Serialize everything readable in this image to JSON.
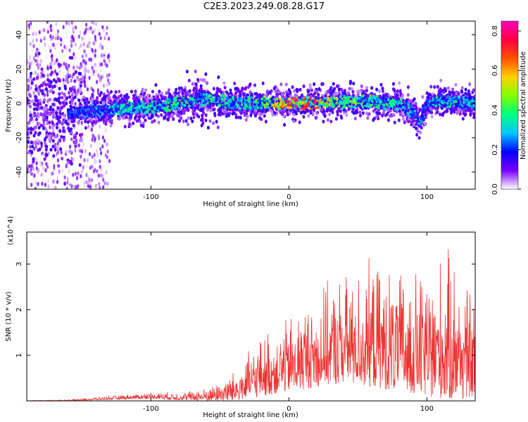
{
  "title": "C2E3.2023.249.08.28.G17",
  "chart_data": [
    {
      "type": "heatmap",
      "xlabel": "Height of straight line (km)",
      "ylabel": "Frequency (Hz)",
      "xlim": [
        -190,
        135
      ],
      "ylim": [
        -50,
        48
      ],
      "xticks": [
        -100,
        0,
        100
      ],
      "yticks": [
        -40,
        -20,
        0,
        20,
        40
      ],
      "colorbar": {
        "label": "Normalized spectral amplitude",
        "range": [
          0.0,
          0.85
        ],
        "ticks": [
          0.0,
          0.2,
          0.4,
          0.6,
          0.8
        ],
        "tick_labels": [
          "0.0",
          "0.2",
          "0.4",
          "0.6",
          "0.8"
        ],
        "colors": [
          "#ffffff",
          "#7a00ff",
          "#0000ff",
          "#00c8ff",
          "#00ff80",
          "#80ff00",
          "#ffd000",
          "#ff5000",
          "#ff0040",
          "#ff00c0"
        ]
      },
      "ridge": {
        "x": [
          -190,
          -160,
          -140,
          -120,
          -100,
          -80,
          -65,
          -55,
          -40,
          -20,
          0,
          20,
          40,
          60,
          80,
          90,
          95,
          100,
          110,
          120,
          135
        ],
        "center_hz": [
          -8,
          -6,
          -4,
          -3,
          -2,
          0,
          3,
          2,
          0,
          0,
          0,
          1,
          1,
          1,
          0,
          -5,
          -12,
          0,
          2,
          1,
          0
        ],
        "peak_amplitude": [
          0.05,
          0.15,
          0.2,
          0.3,
          0.3,
          0.35,
          0.3,
          0.35,
          0.3,
          0.35,
          0.8,
          0.7,
          0.4,
          0.35,
          0.3,
          0.25,
          0.2,
          0.25,
          0.3,
          0.3,
          0.25
        ]
      }
    },
    {
      "type": "line",
      "xlabel": "Height of straight line (km)",
      "ylabel": "SNR (10 * v/v)",
      "y_multiplier": "(x10^4)",
      "xlim": [
        -190,
        135
      ],
      "ylim": [
        0,
        3.7
      ],
      "xticks": [
        -100,
        0,
        100
      ],
      "yticks": [
        1,
        2,
        3
      ],
      "color": "#ee3333",
      "envelope": {
        "x": [
          -190,
          -160,
          -140,
          -100,
          -80,
          -60,
          -40,
          -20,
          0,
          20,
          40,
          60,
          80,
          100,
          120,
          135
        ],
        "upper": [
          0.01,
          0.03,
          0.08,
          0.2,
          0.2,
          0.3,
          0.7,
          1.5,
          2.0,
          2.5,
          2.9,
          3.2,
          3.0,
          3.2,
          3.5,
          2.5
        ],
        "lower": [
          0.0,
          0.0,
          0.02,
          0.05,
          0.02,
          0.0,
          0.0,
          0.1,
          0.2,
          0.3,
          0.4,
          0.3,
          0.2,
          0.1,
          0.0,
          0.1
        ]
      }
    }
  ]
}
